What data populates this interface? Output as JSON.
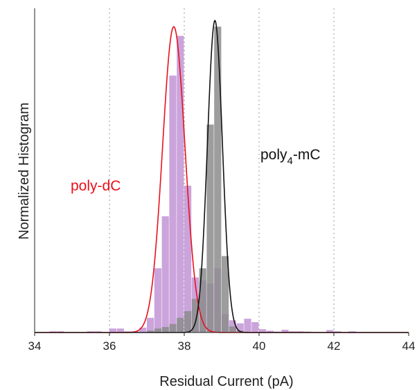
{
  "chart_data": {
    "type": "bar",
    "xlabel": "Residual Current (pA)",
    "ylabel": "Normalized Histogram",
    "xlim": [
      34,
      44
    ],
    "ylim": [
      0,
      1.06
    ],
    "xticks": [
      "34",
      "36",
      "38",
      "40",
      "42",
      "44"
    ],
    "gridlines_x": [
      36,
      38,
      40,
      42
    ],
    "grid": "dotted vertical",
    "bin_width": 0.2,
    "colors": {
      "poly_dC_bars": "#c59ad8",
      "poly_mC_bars": "#8c8c8c",
      "poly_dC_fit": "#e8101a",
      "poly_mC_fit": "#111111"
    },
    "series": [
      {
        "name": "poly-dC",
        "kind": "histogram",
        "bins": [
          {
            "x": 34.4,
            "y": 0.004
          },
          {
            "x": 34.6,
            "y": 0.004
          },
          {
            "x": 35.4,
            "y": 0.004
          },
          {
            "x": 35.6,
            "y": 0.004
          },
          {
            "x": 36.0,
            "y": 0.013
          },
          {
            "x": 36.2,
            "y": 0.013
          },
          {
            "x": 36.4,
            "y": 0.004
          },
          {
            "x": 36.6,
            "y": 0.004
          },
          {
            "x": 36.8,
            "y": 0.016
          },
          {
            "x": 37.0,
            "y": 0.048
          },
          {
            "x": 37.2,
            "y": 0.21
          },
          {
            "x": 37.4,
            "y": 0.38
          },
          {
            "x": 37.6,
            "y": 0.84
          },
          {
            "x": 37.8,
            "y": 0.97
          },
          {
            "x": 38.0,
            "y": 0.48
          },
          {
            "x": 38.2,
            "y": 0.18
          },
          {
            "x": 38.4,
            "y": 0.17
          },
          {
            "x": 38.6,
            "y": 0.16
          },
          {
            "x": 38.8,
            "y": 0.21
          },
          {
            "x": 39.0,
            "y": 0.06
          },
          {
            "x": 39.2,
            "y": 0.04
          },
          {
            "x": 39.4,
            "y": 0.03
          },
          {
            "x": 39.6,
            "y": 0.045
          },
          {
            "x": 39.8,
            "y": 0.034
          },
          {
            "x": 40.0,
            "y": 0.011
          },
          {
            "x": 40.2,
            "y": 0.006
          },
          {
            "x": 40.4,
            "y": 0.003
          },
          {
            "x": 40.6,
            "y": 0.009
          },
          {
            "x": 40.8,
            "y": 0.004
          },
          {
            "x": 41.0,
            "y": 0.004
          },
          {
            "x": 41.2,
            "y": 0.003
          },
          {
            "x": 41.8,
            "y": 0.008
          },
          {
            "x": 42.0,
            "y": 0.004
          },
          {
            "x": 42.4,
            "y": 0.004
          }
        ]
      },
      {
        "name": "poly4-mC",
        "kind": "histogram",
        "bins": [
          {
            "x": 37.0,
            "y": 0.006
          },
          {
            "x": 37.2,
            "y": 0.013
          },
          {
            "x": 37.4,
            "y": 0.018
          },
          {
            "x": 37.6,
            "y": 0.028
          },
          {
            "x": 37.8,
            "y": 0.048
          },
          {
            "x": 38.0,
            "y": 0.07
          },
          {
            "x": 38.2,
            "y": 0.11
          },
          {
            "x": 38.4,
            "y": 0.21
          },
          {
            "x": 38.6,
            "y": 0.68
          },
          {
            "x": 38.8,
            "y": 1.0
          },
          {
            "x": 39.0,
            "y": 0.25
          },
          {
            "x": 39.2,
            "y": 0.02
          },
          {
            "x": 39.4,
            "y": 0.006
          }
        ]
      },
      {
        "name": "poly-dC",
        "kind": "gaussian_fit",
        "amplitude": 1.0,
        "mean": 37.72,
        "sigma": 0.3
      },
      {
        "name": "poly4-mC",
        "kind": "gaussian_fit",
        "amplitude": 1.02,
        "mean": 38.82,
        "sigma": 0.2
      }
    ],
    "annotations": {
      "poly_dC": "poly-dC",
      "poly_mC_base": "poly",
      "poly_mC_sub": "4",
      "poly_mC_rest": "-mC"
    }
  }
}
